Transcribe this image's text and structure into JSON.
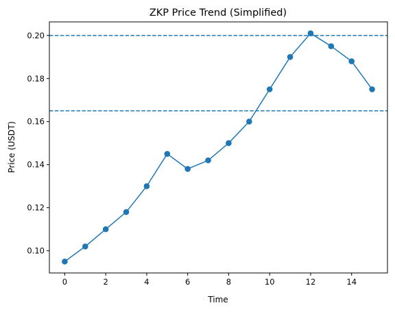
{
  "chart_data": {
    "type": "line",
    "title": "ZKP Price Trend (Simplified)",
    "xlabel": "Time",
    "ylabel": "Price (USDT)",
    "x": [
      0,
      1,
      2,
      3,
      4,
      5,
      6,
      7,
      8,
      9,
      10,
      11,
      12,
      13,
      14,
      15
    ],
    "series": [
      {
        "name": "",
        "color": "#1f77b4",
        "marker": "circle",
        "values": [
          0.095,
          0.102,
          0.11,
          0.118,
          0.13,
          0.145,
          0.138,
          0.142,
          0.15,
          0.16,
          0.175,
          0.19,
          0.201,
          0.195,
          0.188,
          0.175
        ]
      }
    ],
    "hlines": [
      {
        "y": 0.2,
        "style": "dashed",
        "color": "#1f77b4"
      },
      {
        "y": 0.165,
        "style": "dashed",
        "color": "#1f77b4"
      }
    ],
    "xlim": [
      -0.75,
      15.75
    ],
    "ylim": [
      0.0897,
      0.2063
    ],
    "xticks": [
      0,
      2,
      4,
      6,
      8,
      10,
      12,
      14
    ],
    "xtick_labels": [
      "0",
      "2",
      "4",
      "6",
      "8",
      "10",
      "12",
      "14"
    ],
    "yticks": [
      0.1,
      0.12,
      0.14,
      0.16,
      0.18,
      0.2
    ],
    "ytick_labels": [
      "0.10",
      "0.12",
      "0.14",
      "0.16",
      "0.18",
      "0.20"
    ],
    "grid": false,
    "legend": "none"
  }
}
